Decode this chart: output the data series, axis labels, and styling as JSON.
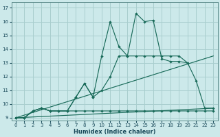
{
  "bg_color": "#cce9ea",
  "grid_color": "#a8cece",
  "line_color": "#1a6b5a",
  "x_label": "Humidex (Indice chaleur)",
  "xlim": [
    -0.5,
    23.5
  ],
  "ylim": [
    8.8,
    17.4
  ],
  "yticks": [
    9,
    10,
    11,
    12,
    13,
    14,
    15,
    16,
    17
  ],
  "xticks": [
    0,
    1,
    2,
    3,
    4,
    5,
    6,
    7,
    8,
    9,
    10,
    11,
    12,
    13,
    14,
    15,
    16,
    17,
    18,
    19,
    20,
    21,
    22,
    23
  ],
  "flat_line_x": [
    0,
    1,
    2,
    3,
    4,
    5,
    6,
    7,
    8,
    9,
    10,
    11,
    12,
    13,
    14,
    15,
    16,
    17,
    18,
    19,
    20,
    21,
    22,
    23
  ],
  "flat_line_y": [
    9.0,
    9.0,
    9.5,
    9.7,
    9.5,
    9.5,
    9.5,
    9.5,
    9.5,
    9.5,
    9.5,
    9.5,
    9.5,
    9.5,
    9.5,
    9.5,
    9.5,
    9.5,
    9.5,
    9.5,
    9.5,
    9.5,
    9.5,
    9.5
  ],
  "smooth_x": [
    0,
    1,
    2,
    3,
    4,
    5,
    6,
    7,
    8,
    9,
    10,
    11,
    12,
    13,
    14,
    15,
    16,
    17,
    18,
    19,
    20,
    21,
    22,
    23
  ],
  "smooth_y": [
    9.0,
    9.0,
    9.5,
    9.7,
    9.5,
    9.5,
    9.5,
    10.5,
    11.5,
    10.5,
    11.0,
    12.0,
    13.5,
    13.5,
    13.5,
    13.5,
    13.5,
    13.5,
    13.5,
    13.5,
    13.0,
    null,
    null,
    null
  ],
  "jagged_x": [
    0,
    1,
    2,
    3,
    4,
    5,
    6,
    7,
    8,
    9,
    10,
    11,
    12,
    13,
    14,
    15,
    16,
    17,
    18,
    19,
    20,
    21,
    22,
    23
  ],
  "jagged_y": [
    9.0,
    9.0,
    9.5,
    9.7,
    9.5,
    9.5,
    9.5,
    10.5,
    11.5,
    10.5,
    13.5,
    16.0,
    14.2,
    13.5,
    16.6,
    16.0,
    16.1,
    13.3,
    13.1,
    13.1,
    13.0,
    11.7,
    9.7,
    9.7
  ],
  "trend1_x": [
    0,
    23
  ],
  "trend1_y": [
    9.0,
    13.5
  ],
  "trend2_x": [
    0,
    23
  ],
  "trend2_y": [
    9.0,
    9.7
  ]
}
